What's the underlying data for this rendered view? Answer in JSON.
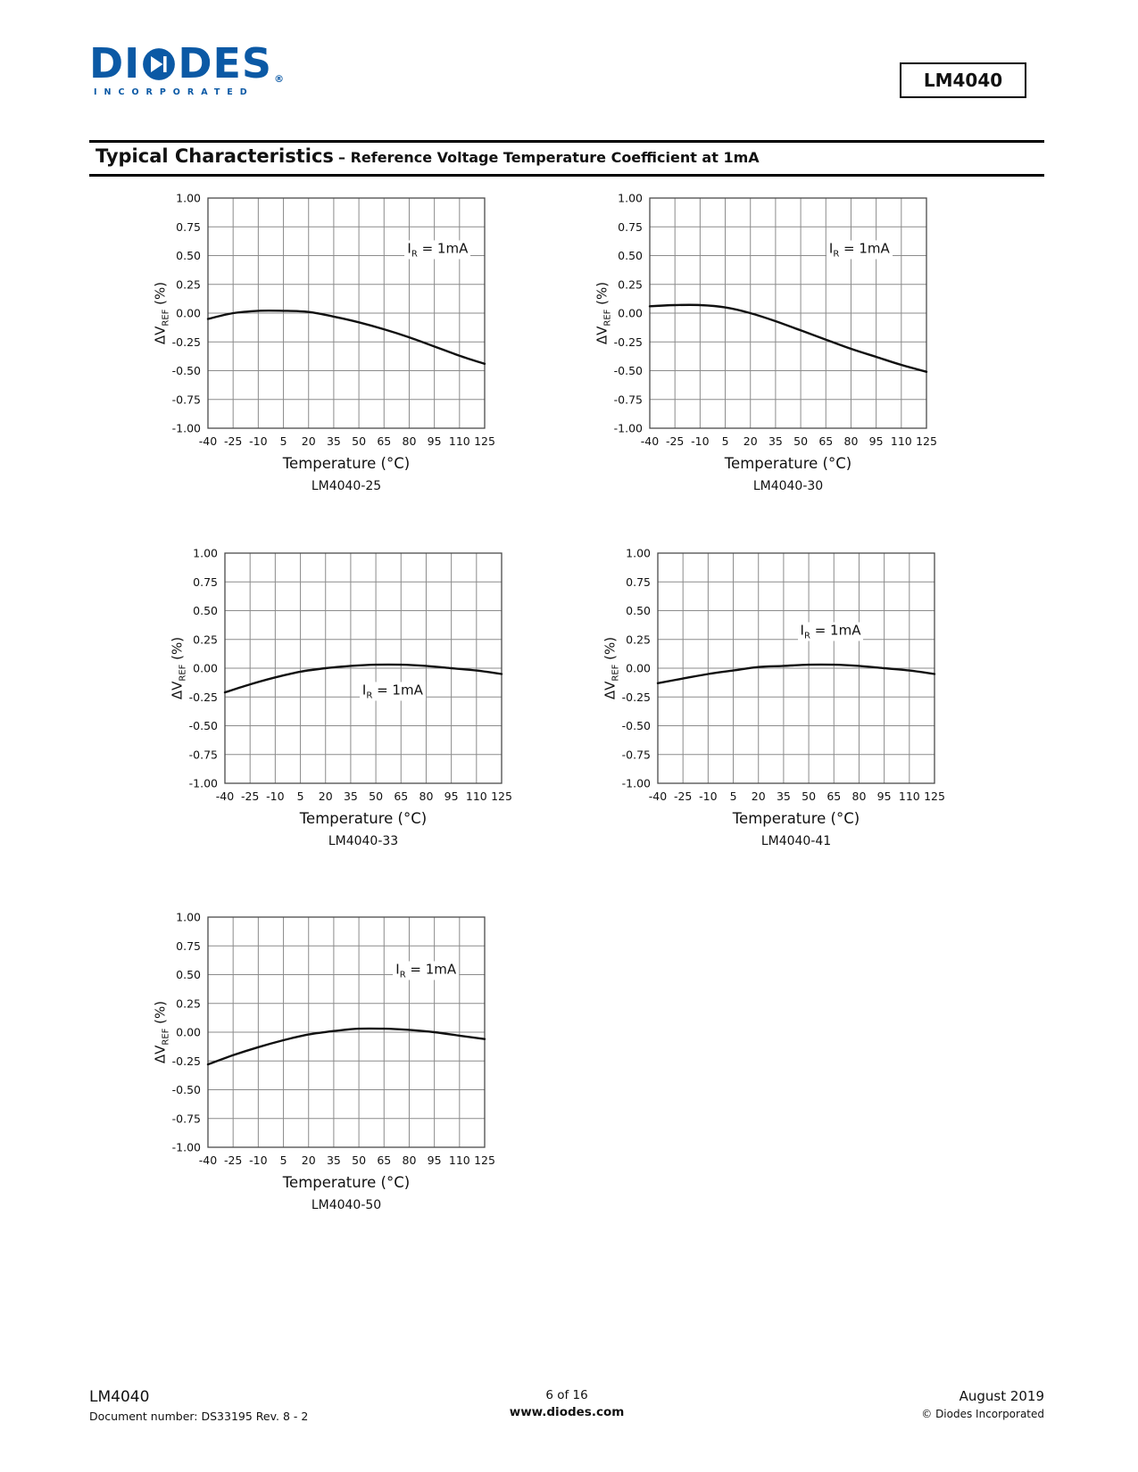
{
  "colors": {
    "brand_blue": "#0b59a5"
  },
  "header": {
    "logo_pre": "DI",
    "logo_post": "DES",
    "logo_reg": "®",
    "logo_subtext": "INCORPORATED",
    "part_number": "LM4040"
  },
  "section": {
    "title": "Typical Characteristics",
    "subtitle": "– Reference Voltage Temperature Coefficient at 1mA"
  },
  "chart_data": [
    {
      "type": "line",
      "title": "LM4040-25",
      "xlabel": "Temperature (°C)",
      "ylabel": "ΔV|REF| (%)",
      "annotation": "I|R| = 1mA",
      "annotation_pos": {
        "x": 97,
        "y": 0.54
      },
      "x": [
        -40,
        -25,
        -10,
        5,
        20,
        35,
        50,
        65,
        80,
        95,
        110,
        125
      ],
      "values": [
        -0.05,
        0.0,
        0.02,
        0.02,
        0.01,
        -0.03,
        -0.08,
        -0.14,
        -0.21,
        -0.29,
        -0.37,
        -0.44
      ],
      "ylim": [
        -1,
        1
      ],
      "ytick_step": 0.25,
      "grid": true,
      "legend": "none"
    },
    {
      "type": "line",
      "title": "LM4040-30",
      "xlabel": "Temperature (°C)",
      "ylabel": "ΔV|REF| (%)",
      "annotation": "I|R| = 1mA",
      "annotation_pos": {
        "x": 85,
        "y": 0.54
      },
      "x": [
        -40,
        -25,
        -10,
        5,
        20,
        35,
        50,
        65,
        80,
        95,
        110,
        125
      ],
      "values": [
        0.06,
        0.07,
        0.07,
        0.05,
        0.0,
        -0.07,
        -0.15,
        -0.23,
        -0.31,
        -0.38,
        -0.45,
        -0.51
      ],
      "ylim": [
        -1,
        1
      ],
      "ytick_step": 0.25,
      "grid": true,
      "legend": "none"
    },
    {
      "type": "line",
      "title": "LM4040-33",
      "xlabel": "Temperature (°C)",
      "ylabel": "ΔV|REF| (%)",
      "annotation": "I|R| = 1mA",
      "annotation_pos": {
        "x": 60,
        "y": -0.21
      },
      "x": [
        -40,
        -25,
        -10,
        5,
        20,
        35,
        50,
        65,
        80,
        95,
        110,
        125
      ],
      "values": [
        -0.21,
        -0.14,
        -0.08,
        -0.03,
        0.0,
        0.02,
        0.03,
        0.03,
        0.02,
        0.0,
        -0.02,
        -0.05
      ],
      "ylim": [
        -1,
        1
      ],
      "ytick_step": 0.25,
      "grid": true,
      "legend": "none"
    },
    {
      "type": "line",
      "title": "LM4040-41",
      "xlabel": "Temperature (°C)",
      "ylabel": "ΔV|REF| (%)",
      "annotation": "I|R| = 1mA",
      "annotation_pos": {
        "x": 63,
        "y": 0.31
      },
      "x": [
        -40,
        -25,
        -10,
        5,
        20,
        35,
        50,
        65,
        80,
        95,
        110,
        125
      ],
      "values": [
        -0.13,
        -0.09,
        -0.05,
        -0.02,
        0.01,
        0.02,
        0.03,
        0.03,
        0.02,
        0.0,
        -0.02,
        -0.05
      ],
      "ylim": [
        -1,
        1
      ],
      "ytick_step": 0.25,
      "grid": true,
      "legend": "none"
    },
    {
      "type": "line",
      "title": "LM4040-50",
      "xlabel": "Temperature (°C)",
      "ylabel": "ΔV|REF| (%)",
      "annotation": "I|R| = 1mA",
      "annotation_pos": {
        "x": 90,
        "y": 0.53
      },
      "x": [
        -40,
        -25,
        -10,
        5,
        20,
        35,
        50,
        65,
        80,
        95,
        110,
        125
      ],
      "values": [
        -0.28,
        -0.2,
        -0.13,
        -0.07,
        -0.02,
        0.01,
        0.03,
        0.03,
        0.02,
        0.0,
        -0.03,
        -0.06
      ],
      "ylim": [
        -1,
        1
      ],
      "ytick_step": 0.25,
      "grid": true,
      "legend": "none"
    }
  ],
  "footer": {
    "part": "LM4040",
    "doc_number": "Document number: DS33195 Rev. 8 - 2",
    "page": "6 of 16",
    "website": "www.diodes.com",
    "date": "August 2019",
    "copyright": "© Diodes Incorporated"
  }
}
